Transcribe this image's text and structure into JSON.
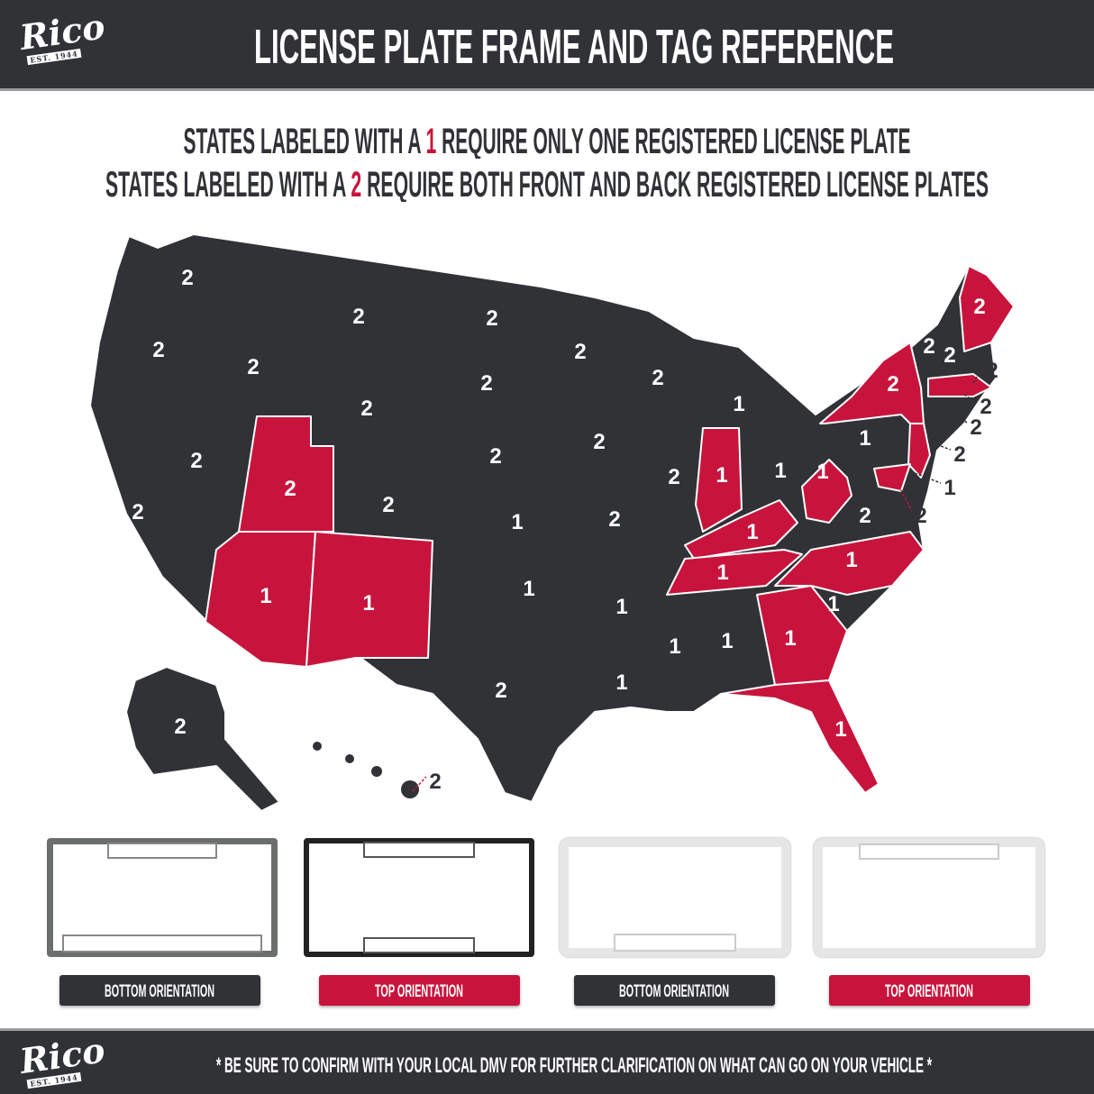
{
  "brand": {
    "logo_text": "Rico",
    "logo_est": "EST. 1944"
  },
  "header": {
    "title": "LICENSE PLATE FRAME AND TAG REFERENCE"
  },
  "legend": {
    "line1_pre": "STATES LABELED WITH A ",
    "line1_num": "1",
    "line1_post": " REQUIRE ONLY ONE REGISTERED LICENSE PLATE",
    "line2_pre": "STATES LABELED WITH A ",
    "line2_num": "2",
    "line2_post": " REQUIRE BOTH FRONT AND BACK REGISTERED LICENSE PLATES"
  },
  "colors": {
    "dark": "#303236",
    "red": "#c8143c",
    "white": "#ffffff"
  },
  "map": {
    "states": [
      {
        "state": "WA",
        "plates": "2",
        "highlight": false
      },
      {
        "state": "OR",
        "plates": "2",
        "highlight": false
      },
      {
        "state": "CA",
        "plates": "2",
        "highlight": false
      },
      {
        "state": "NV",
        "plates": "2",
        "highlight": false
      },
      {
        "state": "ID",
        "plates": "2",
        "highlight": false
      },
      {
        "state": "MT",
        "plates": "2",
        "highlight": false
      },
      {
        "state": "WY",
        "plates": "2",
        "highlight": false
      },
      {
        "state": "UT",
        "plates": "2",
        "highlight": true
      },
      {
        "state": "AZ",
        "plates": "1",
        "highlight": true
      },
      {
        "state": "NM",
        "plates": "1",
        "highlight": true
      },
      {
        "state": "CO",
        "plates": "2",
        "highlight": false
      },
      {
        "state": "ND",
        "plates": "2",
        "highlight": false
      },
      {
        "state": "SD",
        "plates": "2",
        "highlight": false
      },
      {
        "state": "NE",
        "plates": "2",
        "highlight": false
      },
      {
        "state": "KS",
        "plates": "1",
        "highlight": false
      },
      {
        "state": "OK",
        "plates": "1",
        "highlight": false
      },
      {
        "state": "TX",
        "plates": "2",
        "highlight": false
      },
      {
        "state": "MN",
        "plates": "2",
        "highlight": false
      },
      {
        "state": "IA",
        "plates": "2",
        "highlight": false
      },
      {
        "state": "MO",
        "plates": "2",
        "highlight": false
      },
      {
        "state": "AR",
        "plates": "1",
        "highlight": false
      },
      {
        "state": "LA",
        "plates": "1",
        "highlight": false
      },
      {
        "state": "WI",
        "plates": "2",
        "highlight": false
      },
      {
        "state": "IL",
        "plates": "2",
        "highlight": false
      },
      {
        "state": "MI",
        "plates": "1",
        "highlight": false
      },
      {
        "state": "IN",
        "plates": "1",
        "highlight": true
      },
      {
        "state": "OH",
        "plates": "1",
        "highlight": false
      },
      {
        "state": "KY",
        "plates": "1",
        "highlight": true
      },
      {
        "state": "TN",
        "plates": "1",
        "highlight": true
      },
      {
        "state": "MS",
        "plates": "1",
        "highlight": false
      },
      {
        "state": "AL",
        "plates": "1",
        "highlight": false
      },
      {
        "state": "GA",
        "plates": "1",
        "highlight": true
      },
      {
        "state": "FL",
        "plates": "1",
        "highlight": true
      },
      {
        "state": "SC",
        "plates": "1",
        "highlight": false
      },
      {
        "state": "NC",
        "plates": "1",
        "highlight": true
      },
      {
        "state": "VA",
        "plates": "2",
        "highlight": false
      },
      {
        "state": "WV",
        "plates": "1",
        "highlight": true
      },
      {
        "state": "PA",
        "plates": "1",
        "highlight": false
      },
      {
        "state": "NY",
        "plates": "2",
        "highlight": true
      },
      {
        "state": "VT",
        "plates": "2",
        "highlight": false
      },
      {
        "state": "NH",
        "plates": "2",
        "highlight": false
      },
      {
        "state": "ME",
        "plates": "2",
        "highlight": true
      },
      {
        "state": "MA",
        "plates": "2",
        "highlight": true
      },
      {
        "state": "RI",
        "plates": "2",
        "highlight": false
      },
      {
        "state": "CT",
        "plates": "2",
        "highlight": false
      },
      {
        "state": "NJ",
        "plates": "2",
        "highlight": true
      },
      {
        "state": "DE",
        "plates": "1",
        "highlight": false
      },
      {
        "state": "MD",
        "plates": "2",
        "highlight": true
      },
      {
        "state": "AK",
        "plates": "2",
        "highlight": false
      },
      {
        "state": "HI",
        "plates": "2",
        "highlight": false
      }
    ]
  },
  "frames": [
    {
      "label": "BOTTOM ORIENTATION",
      "style": "dark"
    },
    {
      "label": "TOP ORIENTATION",
      "style": "red"
    },
    {
      "label": "BOTTOM ORIENTATION",
      "style": "dark"
    },
    {
      "label": "TOP ORIENTATION",
      "style": "red"
    }
  ],
  "footer": {
    "note": "* BE SURE TO CONFIRM WITH YOUR LOCAL DMV FOR FURTHER CLARIFICATION ON WHAT CAN GO ON YOUR VEHICLE *"
  }
}
